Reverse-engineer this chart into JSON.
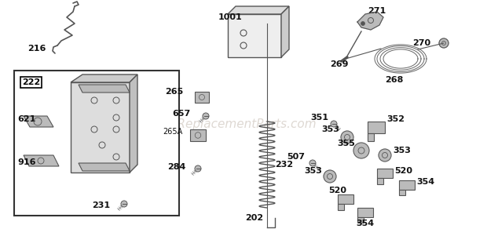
{
  "bg_color": "#ffffff",
  "watermark": "eReplacementParts.com",
  "watermark_color": "#d0c8c0",
  "watermark_fontsize": 11,
  "label_fontsize": 7,
  "label_bold_fontsize": 8,
  "line_color": "#333333",
  "part_color": "#888888",
  "light_gray": "#bbbbbb",
  "mid_gray": "#999999",
  "dark_gray": "#555555"
}
